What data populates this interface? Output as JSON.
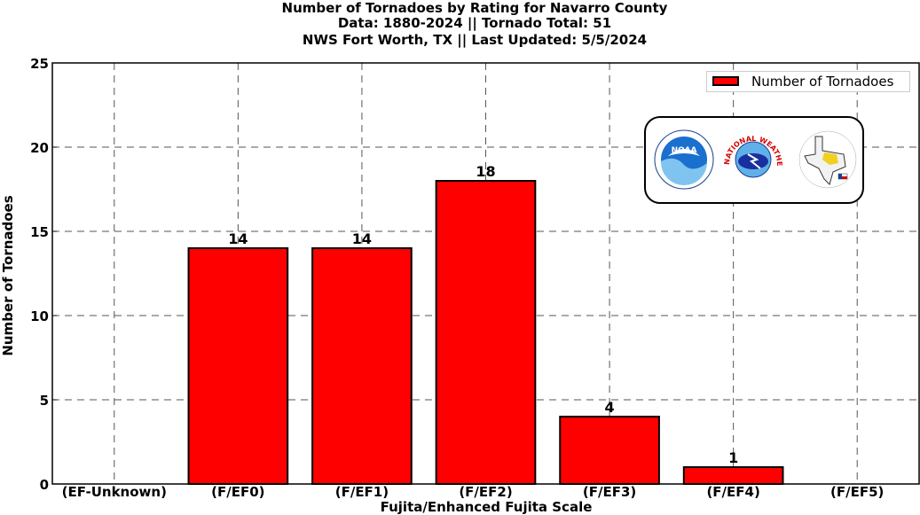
{
  "title": {
    "line1": "Number of Tornadoes by Rating for Navarro County",
    "line2": "Data: 1880-2024 || Tornado Total: 51",
    "line3": "NWS Fort Worth, TX || Last Updated: 5/5/2024"
  },
  "legend": {
    "label": "Number of Tornadoes"
  },
  "colors": {
    "bar": "#ff0000",
    "edge": "#000000",
    "grid": "#555555"
  },
  "logos": {
    "noaa": "NOAA",
    "nws_ring": "NATIONAL WEATHER SERVICE"
  },
  "chart_data": {
    "type": "bar",
    "categories": [
      "(EF-Unknown)",
      "(F/EF0)",
      "(F/EF1)",
      "(F/EF2)",
      "(F/EF3)",
      "(F/EF4)",
      "(F/EF5)"
    ],
    "series": [
      {
        "name": "Number of Tornadoes",
        "values": [
          0,
          14,
          14,
          18,
          4,
          1,
          0
        ]
      }
    ],
    "data_labels": [
      "",
      "14",
      "14",
      "18",
      "4",
      "1",
      ""
    ],
    "xlabel": "Fujita/Enhanced Fujita Scale",
    "ylabel": "Number of Tornadoes",
    "ylim": [
      0,
      25
    ],
    "yticks": [
      0,
      5,
      10,
      15,
      20,
      25
    ],
    "grid": true,
    "legend_position": "top-right"
  }
}
